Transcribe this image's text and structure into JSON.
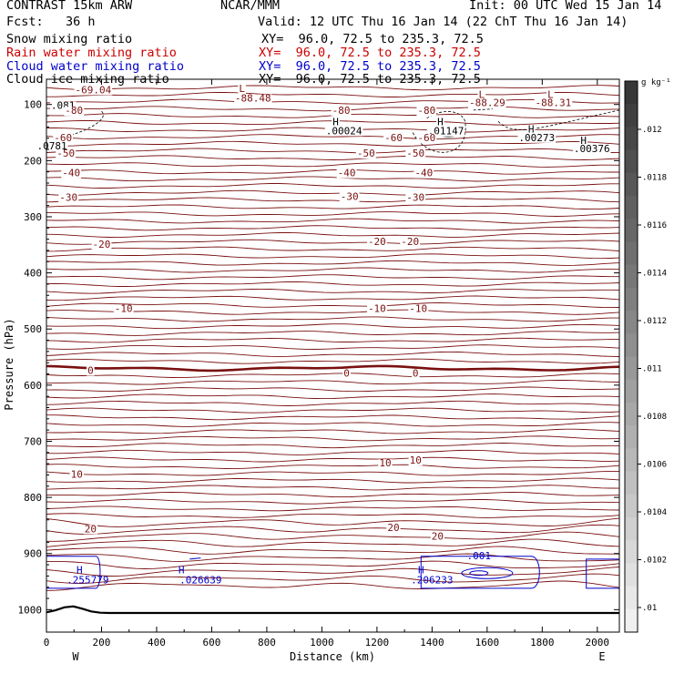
{
  "header": {
    "model": "CONTRAST 15km ARW",
    "org": "NCAR/MMM",
    "init": "Init: 00 UTC Wed 15 Jan 14",
    "fcst": "Fcst:   36 h",
    "valid": "Valid: 12 UTC Thu 16 Jan 14 (22 ChT Thu 16 Jan 14)",
    "fields": [
      {
        "name": "Snow mixing ratio",
        "xy": "XY=  96.0, 72.5 to 235.3, 72.5",
        "color": "#000000"
      },
      {
        "name": "Rain water mixing ratio",
        "xy": "XY=  96.0, 72.5 to 235.3, 72.5",
        "color": "#cc0000"
      },
      {
        "name": "Cloud water mixing ratio",
        "xy": "XY=  96.0, 72.5 to 235.3, 72.5",
        "color": "#0000cc"
      },
      {
        "name": "Cloud ice mixing ratio",
        "xy": "XY=  96.0, 72.5 to 235.3, 72.5",
        "color": "#000000"
      }
    ]
  },
  "chart_data": {
    "type": "contour",
    "xlabel": "Distance (km)",
    "ylabel": "Pressure (hPa)",
    "xlim": [
      0,
      2080
    ],
    "ylim": [
      1040,
      55
    ],
    "x_ticks": [
      0,
      200,
      400,
      600,
      800,
      1000,
      1200,
      1400,
      1600,
      1800,
      2000
    ],
    "y_ticks": [
      100,
      200,
      300,
      400,
      500,
      600,
      700,
      800,
      900,
      1000
    ],
    "endpoints": {
      "west": "W",
      "east": "E"
    },
    "colorbar": {
      "unit": "g kg⁻¹",
      "ticks": [
        ".01",
        ".0102",
        ".0104",
        ".0106",
        ".0108",
        ".011",
        ".0112",
        ".0114",
        ".0116",
        ".0118",
        ".012"
      ]
    },
    "contour_labels": [
      {
        "text": "-69.04",
        "x": 170,
        "p": 80
      },
      {
        "text": "L",
        "x": 710,
        "p": 78
      },
      {
        "text": "-88.48",
        "x": 750,
        "p": 95
      },
      {
        "text": "L",
        "x": 1580,
        "p": 88
      },
      {
        "text": "-88.29",
        "x": 1600,
        "p": 103
      },
      {
        "text": "L",
        "x": 1830,
        "p": 88
      },
      {
        "text": "-88.31",
        "x": 1840,
        "p": 103
      },
      {
        "text": ".081",
        "x": 60,
        "p": 108
      },
      {
        "text": "-80",
        "x": 100,
        "p": 117
      },
      {
        "text": "-80",
        "x": 1070,
        "p": 117
      },
      {
        "text": "-80",
        "x": 1380,
        "p": 117
      },
      {
        "text": "H",
        "x": 1050,
        "p": 137
      },
      {
        "text": ".00024",
        "x": 1080,
        "p": 153
      },
      {
        "text": "H",
        "x": 1430,
        "p": 137
      },
      {
        "text": ".01147",
        "x": 1450,
        "p": 153
      },
      {
        "text": "H",
        "x": 1760,
        "p": 150
      },
      {
        "text": ".00273",
        "x": 1780,
        "p": 165
      },
      {
        "text": "H",
        "x": 1950,
        "p": 170
      },
      {
        "text": ".00376",
        "x": 1980,
        "p": 185
      },
      {
        "text": "-60",
        "x": 60,
        "p": 165
      },
      {
        "text": ".0781",
        "x": 20,
        "p": 180
      },
      {
        "text": "-60",
        "x": 1260,
        "p": 165
      },
      {
        "text": "-60",
        "x": 1380,
        "p": 165
      },
      {
        "text": "-50",
        "x": 70,
        "p": 193
      },
      {
        "text": "-50",
        "x": 1160,
        "p": 193
      },
      {
        "text": "-50",
        "x": 1340,
        "p": 193
      },
      {
        "text": "-40",
        "x": 90,
        "p": 228
      },
      {
        "text": "-40",
        "x": 1090,
        "p": 228
      },
      {
        "text": "-40",
        "x": 1370,
        "p": 228
      },
      {
        "text": "-30",
        "x": 80,
        "p": 272
      },
      {
        "text": "-30",
        "x": 1100,
        "p": 270
      },
      {
        "text": "-30",
        "x": 1340,
        "p": 272
      },
      {
        "text": "-20",
        "x": 200,
        "p": 355
      },
      {
        "text": "-20",
        "x": 1200,
        "p": 350
      },
      {
        "text": "-20",
        "x": 1320,
        "p": 350
      },
      {
        "text": "-10",
        "x": 280,
        "p": 470
      },
      {
        "text": "-10",
        "x": 1200,
        "p": 470
      },
      {
        "text": "-10",
        "x": 1350,
        "p": 470
      },
      {
        "text": "0",
        "x": 160,
        "p": 580
      },
      {
        "text": "0",
        "x": 1090,
        "p": 585
      },
      {
        "text": "0",
        "x": 1340,
        "p": 585
      },
      {
        "text": "10",
        "x": 110,
        "p": 765
      },
      {
        "text": "10",
        "x": 1230,
        "p": 745
      },
      {
        "text": "10",
        "x": 1340,
        "p": 740
      },
      {
        "text": "20",
        "x": 160,
        "p": 862
      },
      {
        "text": "20",
        "x": 1260,
        "p": 860
      },
      {
        "text": "20",
        "x": 1420,
        "p": 875
      }
    ],
    "cloud_water_labels": [
      {
        "text": "H",
        "x": 120,
        "p": 935
      },
      {
        "text": ".255779",
        "x": 150,
        "p": 953
      },
      {
        "text": "H",
        "x": 490,
        "p": 935
      },
      {
        "text": ".026639",
        "x": 560,
        "p": 953
      },
      {
        "text": "H",
        "x": 1360,
        "p": 935
      },
      {
        "text": ".206233",
        "x": 1400,
        "p": 953
      },
      {
        "text": ".001",
        "x": 1570,
        "p": 910
      }
    ]
  }
}
